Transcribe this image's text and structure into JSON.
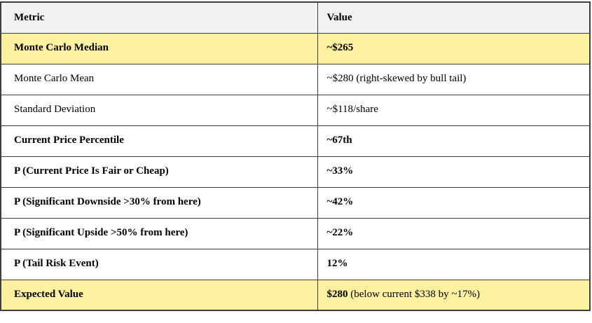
{
  "table": {
    "header": {
      "metric": "Metric",
      "value": "Value"
    },
    "rows": [
      {
        "metric": "Monte Carlo Median",
        "value": "~$265"
      },
      {
        "metric": "Monte Carlo Mean",
        "value": "~$280 (right-skewed by bull tail)"
      },
      {
        "metric": "Standard Deviation",
        "value": "~$118/share"
      },
      {
        "metric": "Current Price Percentile",
        "value": "~67th"
      },
      {
        "metric": "P (Current Price Is Fair or Cheap)",
        "value": "~33%"
      },
      {
        "metric": "P (Significant Downside >30% from here)",
        "value": "~42%"
      },
      {
        "metric": "P (Significant Upside >50% from here)",
        "value": "~22%"
      },
      {
        "metric": "P (Tail Risk Event)",
        "value": "12%"
      },
      {
        "metric": "Expected Value",
        "value_bold": "$280",
        "value_rest": " (below current $338 by ~17%)"
      }
    ],
    "colors": {
      "highlight": "#FBF1A1",
      "header_bg": "#F2F2F2",
      "border": "#3E3E3E"
    }
  }
}
